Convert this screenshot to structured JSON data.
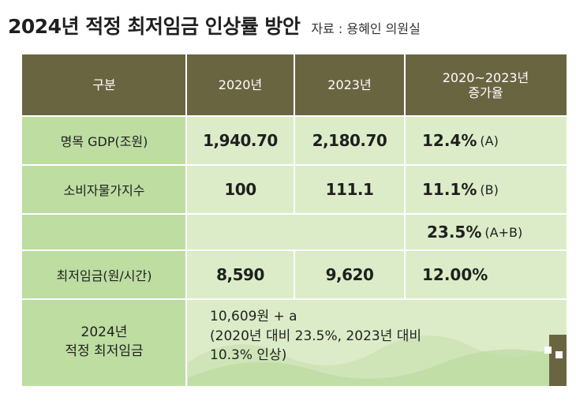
{
  "header": {
    "title": "2024년 적정 최저임금 인상률 방안",
    "source": "자료 : 용혜인 의원실"
  },
  "table": {
    "columns": [
      "구분",
      "2020년",
      "2023년",
      "2020~2023년\n증가율"
    ],
    "rows": [
      {
        "label": "명목 GDP(조원)",
        "v2020": "1,940.70",
        "v2023": "2,180.70",
        "rate": "12.4%",
        "note": "(A)"
      },
      {
        "label": "소비자물가지수",
        "v2020": "100",
        "v2023": "111.1",
        "rate": "11.1%",
        "note": "(B)"
      },
      {
        "label": "",
        "v2020": "",
        "v2023": "",
        "rate": "23.5%",
        "note": "(A+B)"
      },
      {
        "label": "최저임금(원/시간)",
        "v2020": "8,590",
        "v2023": "9,620",
        "rate": "12.00%",
        "note": ""
      }
    ],
    "final": {
      "label": "2024년\n적정 최저임금",
      "line1": "10,609원 + a",
      "line2": "(2020년 대비 23.5%, 2023년 대비",
      "line3": "10.3% 인상)"
    }
  },
  "colors": {
    "header_bg": "#6a6541",
    "label_bg": "#bddda1",
    "body_bg": "#dcecc8"
  }
}
